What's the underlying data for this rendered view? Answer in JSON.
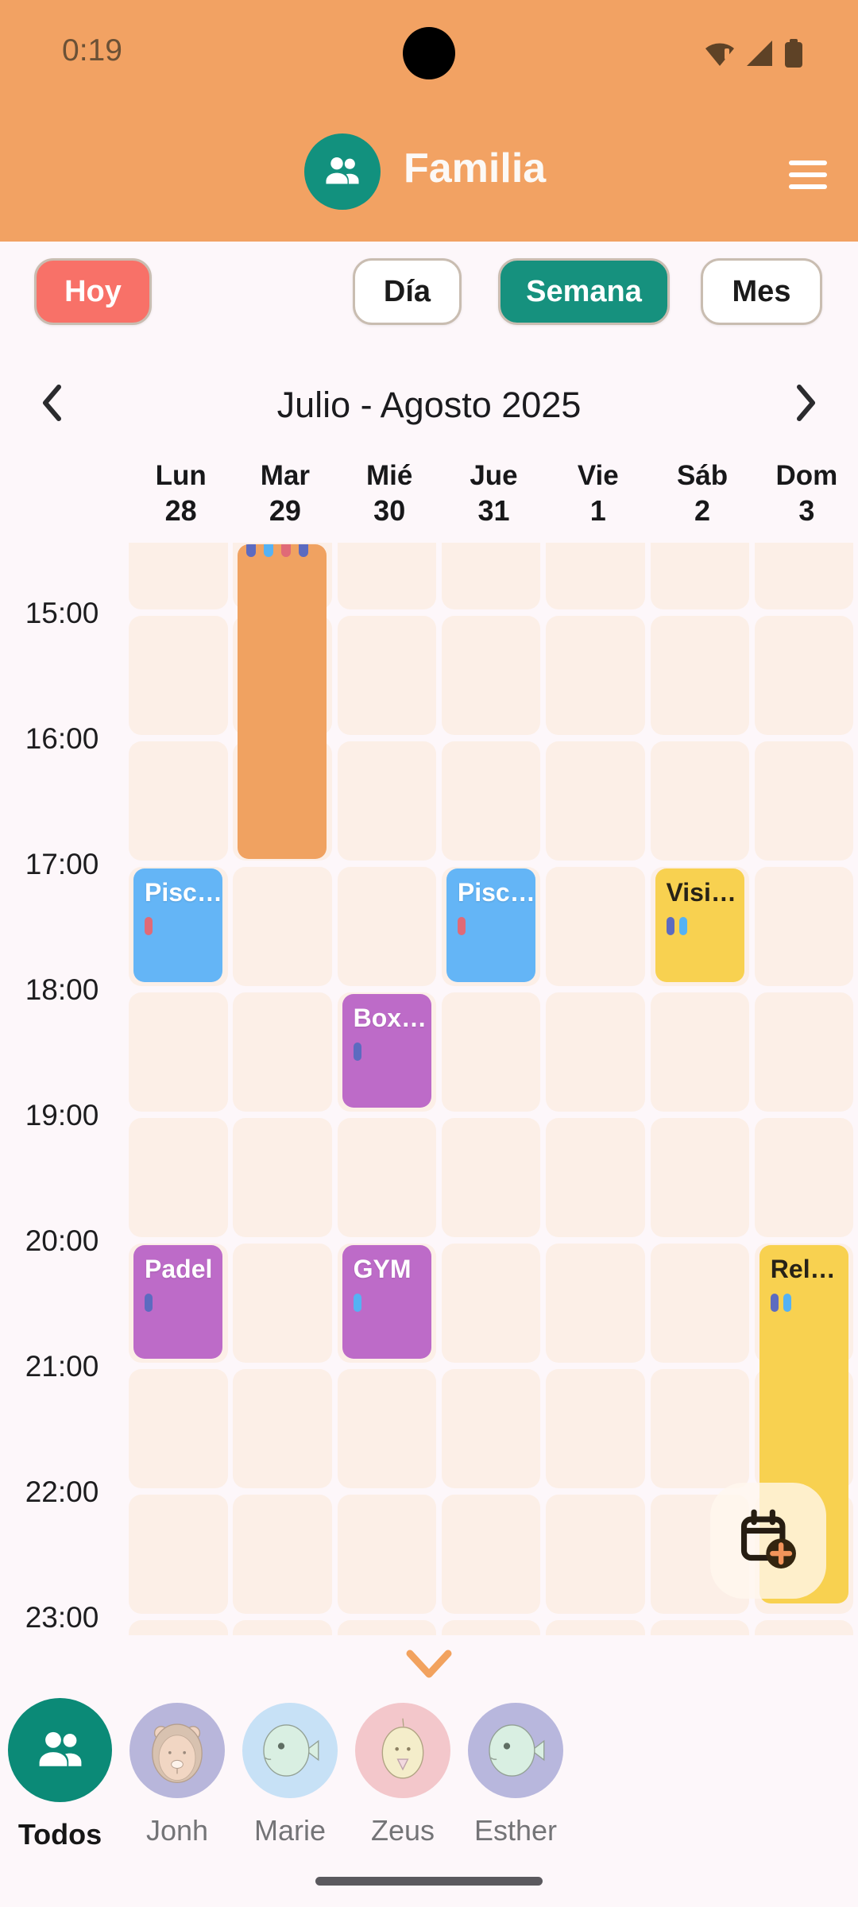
{
  "status_bar": {
    "time": "0:19",
    "icons": [
      "wifi-alert",
      "cellular-signal",
      "battery"
    ]
  },
  "header": {
    "title": "Familia"
  },
  "view_controls": {
    "today": "Hoy",
    "day": "Día",
    "week": "Semana",
    "month": "Mes",
    "selected": "Semana"
  },
  "date_nav": {
    "label": "Julio - Agosto 2025"
  },
  "week_days": [
    {
      "name": "Lun",
      "date": "28"
    },
    {
      "name": "Mar",
      "date": "29"
    },
    {
      "name": "Mié",
      "date": "30"
    },
    {
      "name": "Jue",
      "date": "31"
    },
    {
      "name": "Vie",
      "date": "1"
    },
    {
      "name": "Sáb",
      "date": "2"
    },
    {
      "name": "Dom",
      "date": "3"
    }
  ],
  "time_labels": [
    "15:00",
    "16:00",
    "17:00",
    "18:00",
    "19:00",
    "20:00",
    "21:00",
    "22:00",
    "23:00"
  ],
  "events": [
    {
      "title": "",
      "col": 1,
      "start": 14.42,
      "end": 17.02,
      "color": "orange",
      "pills": [
        "indigo",
        "blue",
        "coral",
        "indigo"
      ],
      "pills_cut": true,
      "continues_above": true
    },
    {
      "title": "Pisc…",
      "col": 0,
      "start": 17,
      "end": 18,
      "color": "blue",
      "pills": [
        "coral"
      ]
    },
    {
      "title": "Pisc…",
      "col": 3,
      "start": 17,
      "end": 18,
      "color": "blue",
      "pills": [
        "coral"
      ]
    },
    {
      "title": "Visi…",
      "col": 5,
      "start": 17,
      "end": 18,
      "color": "yellow",
      "pills": [
        "indigo",
        "blue"
      ]
    },
    {
      "title": "Box…",
      "col": 2,
      "start": 18,
      "end": 19,
      "color": "purple",
      "pills": [
        "indigo"
      ]
    },
    {
      "title": "Padel",
      "col": 0,
      "start": 20,
      "end": 21,
      "color": "purple",
      "pills": [
        "indigo"
      ]
    },
    {
      "title": "GYM",
      "col": 2,
      "start": 20,
      "end": 21,
      "color": "purple",
      "pills": [
        "blue"
      ]
    },
    {
      "title": "Rel…",
      "col": 6,
      "start": 20,
      "end": 22.95,
      "color": "yellow",
      "pills": [
        "indigo",
        "blue"
      ]
    }
  ],
  "members": [
    {
      "name": "Todos",
      "selected": true,
      "icon": "people"
    },
    {
      "name": "Jonh",
      "selected": false,
      "icon": "bear"
    },
    {
      "name": "Marie",
      "selected": false,
      "icon": "fish"
    },
    {
      "name": "Zeus",
      "selected": false,
      "icon": "chick"
    },
    {
      "name": "Esther",
      "selected": false,
      "icon": "fish"
    }
  ],
  "colors": {
    "header_bg": "#F2A263",
    "page_bg": "#FDF7FA",
    "cell_bg": "#FCEFE7",
    "teal": "#16917E",
    "today_button": "#F87168",
    "events": {
      "orange": "#F0A261",
      "blue": "#64B5F6",
      "purple": "#BD6BC8",
      "yellow": "#F8D150"
    },
    "pills": {
      "indigo": "#5C6BC0",
      "blue": "#55B2F4",
      "coral": "#E06A77"
    }
  }
}
